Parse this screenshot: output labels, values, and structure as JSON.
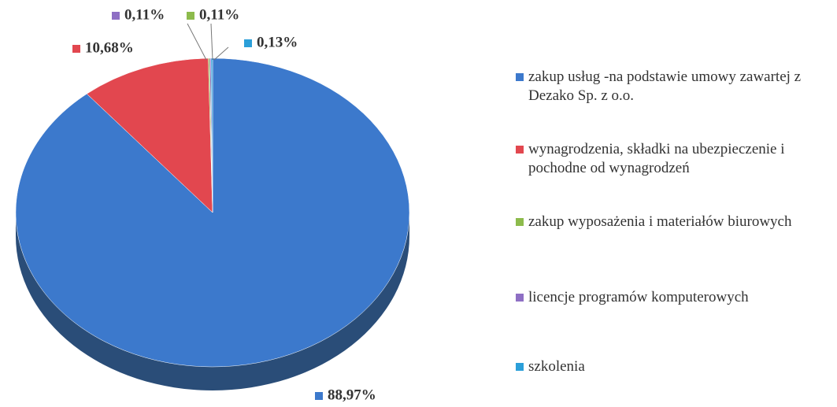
{
  "chart_data": {
    "type": "pie",
    "categories": [
      "zakup usług -na podstawie umowy zawartej z Dezako Sp. z o.o.",
      "wynagrodzenia, składki na ubezpieczenie i pochodne od wynagrodzeń",
      "zakup wyposażenia i materiałów biurowych",
      "licencje programów komputerowych",
      "szkolenia"
    ],
    "values": [
      88.97,
      10.68,
      0.11,
      0.11,
      0.13
    ],
    "value_labels": [
      "88,97%",
      "10,68%",
      "0,11%",
      "0,11%",
      "0,13%"
    ],
    "colors": [
      "#3c79cc",
      "#e2474f",
      "#8dbb4c",
      "#8e6fc4",
      "#2b9fd9"
    ]
  }
}
